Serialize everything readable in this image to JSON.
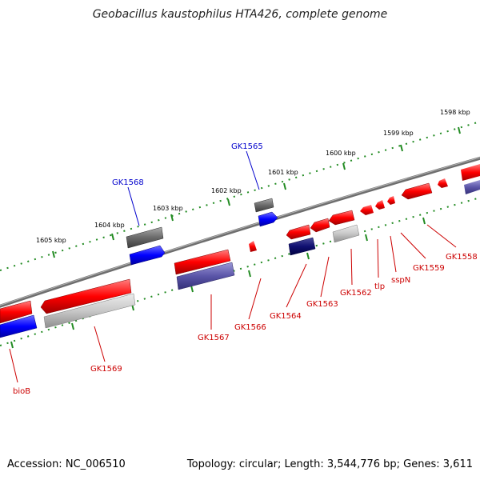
{
  "title": "Geobacillus kaustophilus HTA426, complete genome",
  "accession": "Accession: NC_006510",
  "summary": "Topology: circular; Length: 3,544,776 bp; Genes: 3,611",
  "colors": {
    "background": "#ffffff",
    "backbone": "#808080",
    "scale_dots": "#228b22",
    "forward_label": "#0000cc",
    "reverse_label": "#cc0000"
  },
  "scale_ticks": [
    "1605 kbp",
    "1604 kbp",
    "1603 kbp",
    "1602 kbp",
    "1601 kbp",
    "1600 kbp",
    "1599 kbp",
    "1598 kbp"
  ],
  "forward_genes": [
    {
      "name": "GK1568",
      "color": "blue"
    },
    {
      "name": "GK1565",
      "color": "blue"
    }
  ],
  "reverse_genes": [
    {
      "name": "bioB",
      "color": "red"
    },
    {
      "name": "GK1569",
      "color": "red"
    },
    {
      "name": "GK1567",
      "color": "red"
    },
    {
      "name": "GK1566",
      "color": "red"
    },
    {
      "name": "GK1564",
      "color": "red"
    },
    {
      "name": "GK1563",
      "color": "red"
    },
    {
      "name": "GK1562",
      "color": "red"
    },
    {
      "name": "tlp",
      "color": "red"
    },
    {
      "name": "sspN",
      "color": "red"
    },
    {
      "name": "GK1559",
      "color": "red"
    },
    {
      "name": "GK1558",
      "color": "red"
    }
  ]
}
